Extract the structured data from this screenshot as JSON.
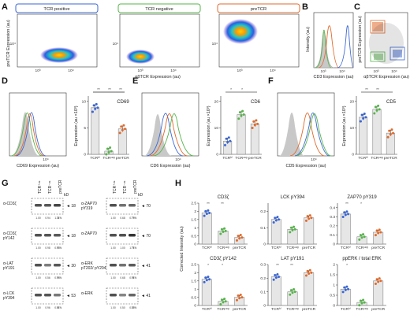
{
  "colors": {
    "tcr_pos": "#3a66d4",
    "tcr_neg": "#56b44a",
    "pretcr": "#e06a2b",
    "grey": "#c8c8c8"
  },
  "panelA": {
    "letter": "A",
    "plots": [
      {
        "title": "TCR positive",
        "color": "#3a66d4"
      },
      {
        "title": "TCR negative",
        "color": "#56b44a"
      },
      {
        "title": "preTCR",
        "color": "#e06a2b"
      }
    ],
    "ylabel": "preTCR Expression (au)",
    "xlabel": "αβTCR Expression (au)",
    "ticks": [
      "10³",
      "10⁴"
    ]
  },
  "panelB": {
    "letter": "B",
    "ylabel": "Intensity (au)",
    "xlabel": "CD3 Expression (au)",
    "ticks": [
      "10³",
      "10⁴"
    ]
  },
  "panelC": {
    "letter": "C",
    "ylabel": "preTCR Expression (au)",
    "xlabel": "αβTCR Expression (au)",
    "ticks": [
      "10³",
      "10⁴"
    ]
  },
  "panelD": {
    "letter": "D",
    "hist_xlabel": "CD69 Expression (au)",
    "hist_tick": "10⁴",
    "bar_title": "CD69",
    "ylabel": "Expression (au ×10³)",
    "yticks": [
      "0",
      "5",
      "10"
    ],
    "sig": [
      "**",
      "**",
      "**"
    ],
    "chart_data": {
      "type": "bar",
      "title": "CD69",
      "categories": [
        "TCRʰⁱ",
        "TCRⁿᵉᵍ",
        "preTCR"
      ],
      "values": [
        8.8,
        0.6,
        4.8
      ],
      "ylim": [
        0,
        11
      ]
    }
  },
  "panelE": {
    "letter": "E",
    "hist_xlabel": "CD6 Expression (au)",
    "hist_tick": "10⁴",
    "bar_title": "CD6",
    "ylabel": "Expression (au ×10³)",
    "yticks": [
      "0",
      "10",
      "20"
    ],
    "sig": [
      "*",
      "*"
    ],
    "chart_data": {
      "type": "bar",
      "title": "CD6",
      "categories": [
        "TCRʰⁱ",
        "TCRⁿᵉᵍ",
        "preTCR"
      ],
      "values": [
        5,
        15,
        11.5
      ],
      "ylim": [
        0,
        22
      ]
    }
  },
  "panelF": {
    "letter": "F",
    "hist_xlabel": "CD5 Expression (au)",
    "hist_tick": "10⁴",
    "bar_title": "CD5",
    "ylabel": "Expression (au ×10³)",
    "yticks": [
      "0",
      "10",
      "20"
    ],
    "sig": [
      "**",
      "**"
    ],
    "chart_data": {
      "type": "bar",
      "title": "CD5",
      "categories": [
        "TCRʰⁱ",
        "TCRⁿᵉᵍ",
        "preTCR"
      ],
      "values": [
        14,
        17,
        8
      ],
      "ylim": [
        0,
        22
      ]
    }
  },
  "panelG": {
    "letter": "G",
    "lanes": [
      "TCR⁺ᵛᵉ",
      "TCR⁻ᵛᵉ",
      "preTCR"
    ],
    "kd": "kD",
    "left_blots": [
      {
        "label": "α-CD3ζ",
        "mw": "18",
        "quant": [
          "1.00",
          "0.94",
          "1.11"
        ]
      },
      {
        "label": "α-CD3ζ pY142",
        "mw": "18",
        "quant": [
          "1.00",
          "0.98",
          "0.93"
        ]
      },
      {
        "label": "α-LAT pY191",
        "mw": "30",
        "quant": [
          "1.00",
          "0.56",
          "0.94"
        ]
      },
      {
        "label": "α-LCK pY394",
        "mw": "53",
        "quant": [
          "1.00",
          "0.96",
          "0.61"
        ]
      }
    ],
    "right_blots": [
      {
        "label": "α-ZAP70 pY319",
        "mw": "70",
        "quant": [
          "1.00",
          "0.68",
          "0.79"
        ]
      },
      {
        "label": "α-ZAP70",
        "mw": "70",
        "quant": [
          "1.00",
          "1.00",
          "1.71"
        ]
      },
      {
        "label": "α-ERK pT202/ pY204",
        "mw": "41",
        "quant": [
          "1.00",
          "0.68",
          "0.91"
        ]
      },
      {
        "label": "α-ERK",
        "mw": "41",
        "quant": [
          "1.00",
          "0.50",
          "0.80"
        ]
      }
    ],
    "tfn": "TFN"
  },
  "panelH": {
    "letter": "H",
    "ylabel": "Corrected Intensity (au)",
    "categories": [
      "TCRʰⁱ",
      "TCRⁿᵉᵍ",
      "preTCR"
    ],
    "chart_data": [
      {
        "type": "bar",
        "title": "CD3ζ",
        "values": [
          1.9,
          0.8,
          0.4
        ],
        "ylim": [
          0,
          2.5
        ],
        "yticks": [
          "0",
          "0.5",
          "1",
          "1.5",
          "2",
          "2.5"
        ],
        "sig": [
          "**",
          "**"
        ]
      },
      {
        "type": "bar",
        "title": "LCK pY394",
        "values": [
          0.15,
          0.09,
          0.16
        ],
        "ylim": [
          0,
          0.25
        ],
        "yticks": [
          "0",
          "0.1",
          "0.2"
        ],
        "sig": []
      },
      {
        "type": "bar",
        "title": "ZAP70 pY319",
        "values": [
          0.33,
          0.08,
          0.13
        ],
        "ylim": [
          0,
          0.45
        ],
        "yticks": [
          "0",
          "0.1",
          "0.2",
          "0.3",
          "0.4"
        ],
        "sig": [
          "**",
          "*"
        ]
      },
      {
        "type": "bar",
        "title": "CD3ζ pY142",
        "values": [
          1.6,
          0.25,
          0.5
        ],
        "ylim": [
          0,
          2.5
        ],
        "yticks": [
          "0",
          "0.5",
          "1",
          "1.5",
          "2",
          "2.5"
        ],
        "sig": [
          "*",
          "*"
        ]
      },
      {
        "type": "bar",
        "title": "LAT pY191",
        "values": [
          0.21,
          0.1,
          0.24
        ],
        "ylim": [
          0,
          0.3
        ],
        "yticks": [
          "0",
          "0.1",
          "0.2",
          "0.3"
        ],
        "sig": [
          "**",
          "**"
        ]
      },
      {
        "type": "bar",
        "title": "ppERK / total ERK",
        "values": [
          0.8,
          0.15,
          1.2
        ],
        "ylim": [
          0,
          2
        ],
        "yticks": [
          "0",
          "0.5",
          "1",
          "1.5",
          "2"
        ],
        "sig": [
          "*"
        ]
      }
    ]
  }
}
